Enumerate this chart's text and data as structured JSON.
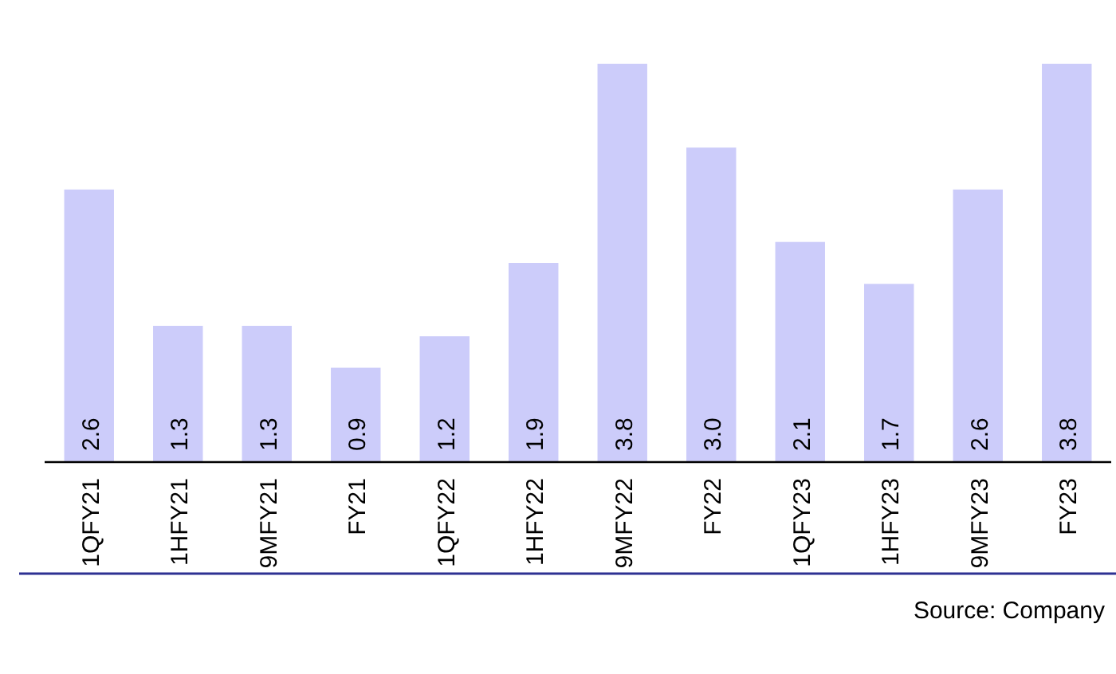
{
  "chart_data": {
    "type": "bar",
    "categories": [
      "1QFY21",
      "1HFY21",
      "9MFY21",
      "FY21",
      "1QFY22",
      "1HFY22",
      "9MFY22",
      "FY22",
      "1QFY23",
      "1HFY23",
      "9MFY23",
      "FY23"
    ],
    "values": [
      2.6,
      1.3,
      1.3,
      0.9,
      1.2,
      1.9,
      3.8,
      3.0,
      2.1,
      1.7,
      2.6,
      3.8
    ],
    "color": "#ccccfa",
    "value_labels": [
      "2.6",
      "1.3",
      "1.3",
      "0.9",
      "1.2",
      "1.9",
      "3.8",
      "3.0",
      "2.1",
      "1.7",
      "2.6",
      "3.8"
    ],
    "annotations": [
      "Source: Company"
    ]
  }
}
